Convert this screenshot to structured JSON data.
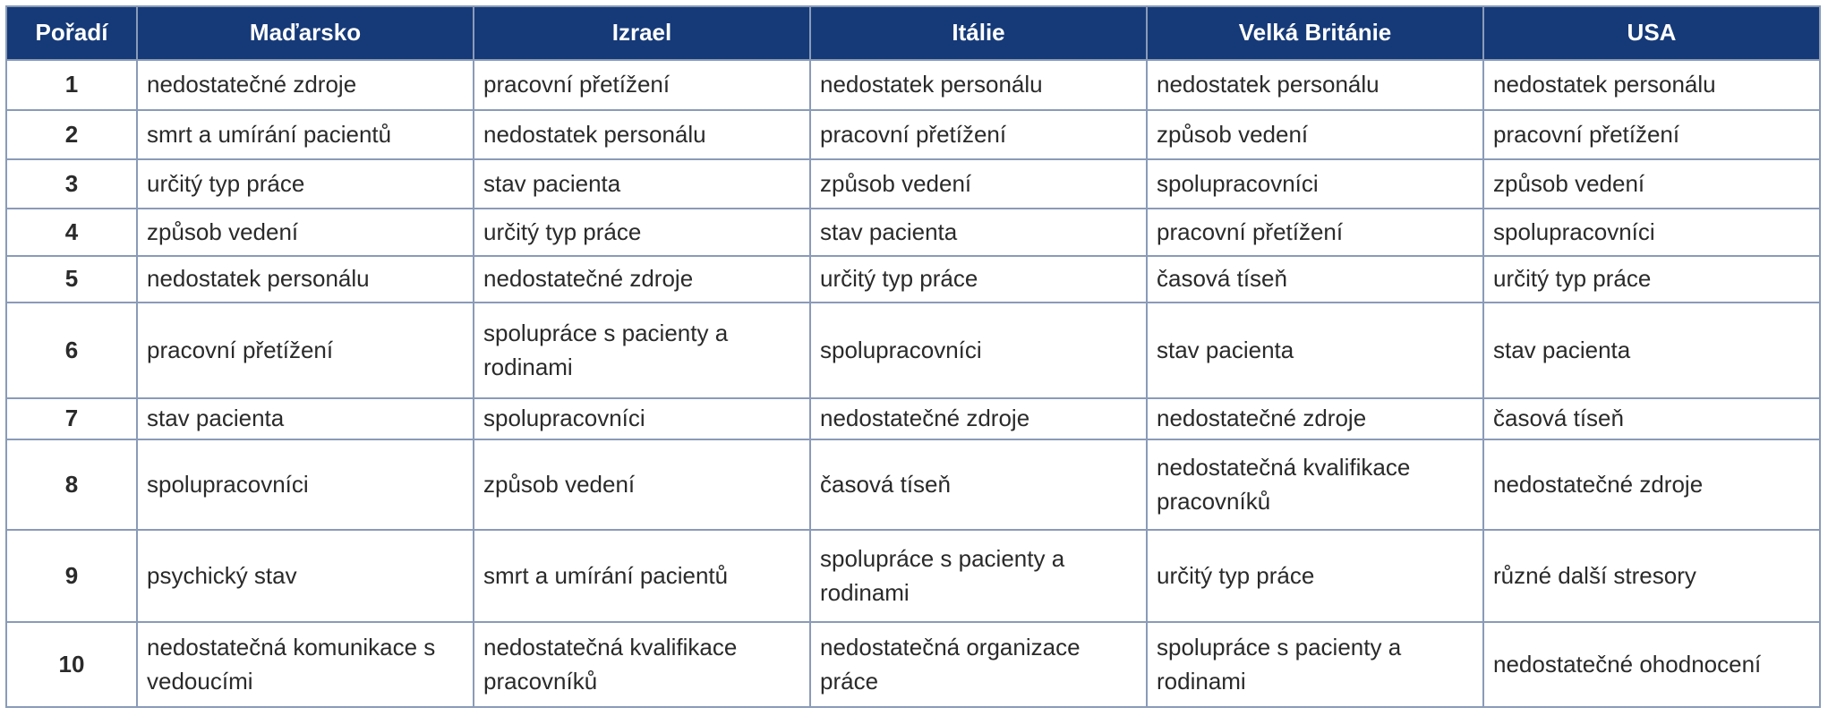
{
  "table": {
    "header": [
      "Pořadí",
      "Maďarsko",
      "Izrael",
      "Itálie",
      "Velká Británie",
      "USA"
    ],
    "rows": [
      [
        "1",
        "nedostatečné zdroje",
        "pracovní přetížení",
        "nedostatek personálu",
        "nedostatek personálu",
        "nedostatek personálu"
      ],
      [
        "2",
        "smrt a umírání pacientů",
        "nedostatek personálu",
        "pracovní přetížení",
        "způsob vedení",
        "pracovní přetížení"
      ],
      [
        "3",
        "určitý typ práce",
        "stav pacienta",
        "způsob vedení",
        "spolupracovníci",
        "způsob vedení"
      ],
      [
        "4",
        "způsob vedení",
        "určitý typ práce",
        "stav pacienta",
        "pracovní přetížení",
        "spolupracovníci"
      ],
      [
        "5",
        "nedostatek personálu",
        "nedostatečné zdroje",
        "určitý typ práce",
        "časová tíseň",
        "určitý typ práce"
      ],
      [
        "6",
        "pracovní přetížení",
        "spolupráce s pacienty a rodinami",
        "spolupracovníci",
        "stav pacienta",
        "stav pacienta"
      ],
      [
        "7",
        "stav pacienta",
        "spolupracovníci",
        "nedostatečné zdroje",
        "nedostatečné zdroje",
        "časová tíseň"
      ],
      [
        "8",
        "spolupracovníci",
        "způsob vedení",
        "časová tíseň",
        "nedostatečná kvalifikace pracovníků",
        "nedostatečné zdroje"
      ],
      [
        "9",
        "psychický stav",
        "smrt a umírání pacientů",
        "spolupráce s pacienty a rodinami",
        "určitý typ práce",
        "různé další stresory"
      ],
      [
        "10",
        "nedostatečná komunikace s vedoucími",
        "nedostatečná kvalifikace pracovníků",
        "nedostatečná organizace práce",
        "spolupráce s pacienty a rodinami",
        "nedostatečné ohodnocení"
      ]
    ]
  }
}
